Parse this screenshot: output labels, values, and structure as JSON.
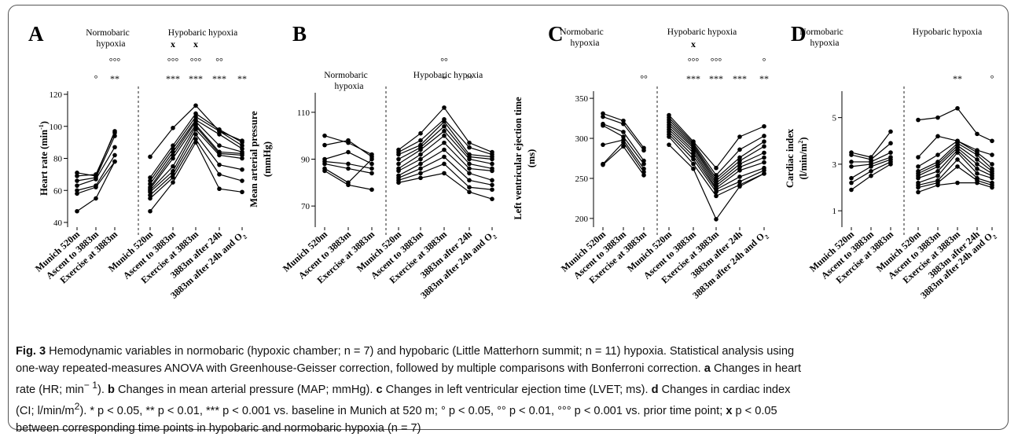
{
  "chart_data": [
    {
      "type": "line",
      "panel_letter": "A",
      "ylabel": "Heart rate (min",
      "ylabel_sup": "-1",
      "ylabel_end": ")",
      "ylim": [
        40,
        120
      ],
      "yticks": [
        40,
        60,
        80,
        100,
        120
      ],
      "groups": [
        {
          "label_lines": [
            "Normobaric",
            "hypoxia"
          ],
          "categories": [
            "Munich 520m",
            "Ascent to 3883m",
            "Exercise at 3883m"
          ],
          "annotations": [
            [],
            [
              "°"
            ],
            [
              "°°°",
              "**"
            ]
          ],
          "series": [
            {
              "values": [
                71,
                69,
                97
              ]
            },
            {
              "values": [
                69,
                70,
                96
              ]
            },
            {
              "values": [
                66,
                68,
                94
              ]
            },
            {
              "values": [
                63,
                67,
                87
              ]
            },
            {
              "values": [
                60,
                63,
                82
              ]
            },
            {
              "values": [
                58,
                62,
                78
              ]
            },
            {
              "values": [
                47,
                55,
                78
              ]
            }
          ]
        },
        {
          "label_lines": [
            "Hypobaric hypoxia"
          ],
          "categories": [
            "Munich 520m",
            "Ascent to 3883m",
            "Exercise at 3883m",
            "3883m after 24h",
            "3883m after 24h and O2"
          ],
          "annotations": [
            [],
            [
              "x",
              "°°°",
              "***"
            ],
            [
              "x",
              "°°°",
              "***"
            ],
            [
              "°°",
              "***"
            ],
            [
              "**"
            ]
          ],
          "series": [
            {
              "values": [
                81,
                99,
                113,
                97,
                91
              ]
            },
            {
              "values": [
                68,
                88,
                108,
                98,
                90
              ]
            },
            {
              "values": [
                66,
                86,
                106,
                97,
                88
              ]
            },
            {
              "values": [
                64,
                84,
                104,
                95,
                86
              ]
            },
            {
              "values": [
                62,
                82,
                103,
                88,
                84
              ]
            },
            {
              "values": [
                61,
                80,
                101,
                84,
                83
              ]
            },
            {
              "values": [
                60,
                75,
                100,
                83,
                82
              ]
            },
            {
              "values": [
                59,
                72,
                98,
                82,
                80
              ]
            },
            {
              "values": [
                57,
                70,
                95,
                76,
                73
              ]
            },
            {
              "values": [
                55,
                68,
                92,
                70,
                66
              ]
            },
            {
              "values": [
                47,
                65,
                90,
                61,
                59
              ]
            }
          ]
        }
      ]
    },
    {
      "type": "line",
      "panel_letter": "B",
      "ylabel": "Mean arterial pressure",
      "ylabel2": "(mmHg)",
      "ylim": [
        63,
        117
      ],
      "yticks": [
        70,
        90,
        110
      ],
      "groups": [
        {
          "label_lines": [
            "Normobaric",
            "hypoxia"
          ],
          "categories": [
            "Munich 520m",
            "Ascent to 3883m",
            "Exercise at 3883m"
          ],
          "annotations": [
            [],
            [],
            []
          ],
          "series": [
            {
              "values": [
                100,
                97,
                92
              ]
            },
            {
              "values": [
                96,
                98,
                91
              ]
            },
            {
              "values": [
                90,
                93,
                88
              ]
            },
            {
              "values": [
                89,
                88,
                86
              ]
            },
            {
              "values": [
                88,
                86,
                84
              ]
            },
            {
              "values": [
                86,
                80,
                90
              ]
            },
            {
              "values": [
                85,
                79,
                77
              ]
            }
          ]
        },
        {
          "label_lines": [
            "Hypobaric hypoxia"
          ],
          "categories": [
            "Munich 520m",
            "Ascent to 3883m",
            "Exercise at 3883m",
            "3883m after 24h",
            "3883m after 24h and O2"
          ],
          "annotations": [
            [],
            [],
            [
              "°°",
              "*"
            ],
            [
              "°°"
            ],
            []
          ],
          "series": [
            {
              "values": [
                94,
                101,
                112,
                97,
                93
              ]
            },
            {
              "values": [
                93,
                98,
                107,
                95,
                92
              ]
            },
            {
              "values": [
                92,
                96,
                106,
                92,
                91
              ]
            },
            {
              "values": [
                90,
                95,
                104,
                91,
                90
              ]
            },
            {
              "values": [
                88,
                94,
                102,
                90,
                88
              ]
            },
            {
              "values": [
                86,
                92,
                100,
                88,
                86
              ]
            },
            {
              "values": [
                85,
                90,
                97,
                86,
                85
              ]
            },
            {
              "values": [
                83,
                88,
                94,
                84,
                81
              ]
            },
            {
              "values": [
                82,
                86,
                91,
                81,
                79
              ]
            },
            {
              "values": [
                81,
                84,
                88,
                78,
                77
              ]
            },
            {
              "values": [
                80,
                82,
                84,
                76,
                73
              ]
            }
          ]
        }
      ]
    },
    {
      "type": "line",
      "panel_letter": "C",
      "ylabel": "Left ventricular ejection time",
      "ylabel2": "(ms)",
      "ylim": [
        195,
        355
      ],
      "yticks": [
        200,
        250,
        300,
        350
      ],
      "groups": [
        {
          "label_lines": [
            "Normobaric",
            "hypoxia"
          ],
          "categories": [
            "Munich 520m",
            "Ascent to 3883m",
            "Exercise at 3883m"
          ],
          "annotations": [
            [],
            [],
            [
              "°°"
            ]
          ],
          "series": [
            {
              "values": [
                331,
                322,
                288
              ]
            },
            {
              "values": [
                327,
                318,
                285
              ]
            },
            {
              "values": [
                318,
                308,
                272
              ]
            },
            {
              "values": [
                316,
                302,
                268
              ]
            },
            {
              "values": [
                292,
                298,
                262
              ]
            },
            {
              "values": [
                268,
                295,
                258
              ]
            },
            {
              "values": [
                267,
                290,
                254
              ]
            }
          ]
        },
        {
          "label_lines": [
            "Hypobaric hypoxia"
          ],
          "categories": [
            "Munich 520m",
            "Ascent to 3883m",
            "Exercise at 3883m",
            "3883m after 24h",
            "3883m after 24h and O2"
          ],
          "annotations": [
            [],
            [
              "x",
              "°°°",
              "***"
            ],
            [
              "°°°",
              "***"
            ],
            [
              "***"
            ],
            [
              "°",
              "**"
            ]
          ],
          "series": [
            {
              "values": [
                329,
                296,
                263,
                302,
                315
              ]
            },
            {
              "values": [
                326,
                294,
                254,
                286,
                303
              ]
            },
            {
              "values": [
                323,
                292,
                250,
                276,
                296
              ]
            },
            {
              "values": [
                320,
                290,
                247,
                272,
                290
              ]
            },
            {
              "values": [
                317,
                288,
                244,
                268,
                282
              ]
            },
            {
              "values": [
                314,
                285,
                241,
                264,
                276
              ]
            },
            {
              "values": [
                311,
                282,
                238,
                260,
                270
              ]
            },
            {
              "values": [
                308,
                278,
                236,
                252,
                263
              ]
            },
            {
              "values": [
                305,
                274,
                233,
                246,
                260
              ]
            },
            {
              "values": [
                302,
                268,
                228,
                242,
                256
              ]
            },
            {
              "values": [
                292,
                262,
                199,
                240,
                256
              ]
            }
          ]
        }
      ]
    },
    {
      "type": "line",
      "panel_letter": "D",
      "ylabel": "Cardiac index",
      "ylabel2": "(l/min/m",
      "ylabel2_sup": "2",
      "ylabel2_end": ")",
      "ylim": [
        0.5,
        6.0
      ],
      "yticks": [
        1,
        3,
        5
      ],
      "groups": [
        {
          "label_lines": [
            "Normobaric",
            "hypoxia"
          ],
          "categories": [
            "Munich 520m",
            "Ascent to 3883m",
            "Exercise at 3883m"
          ],
          "annotations": [
            [],
            [],
            []
          ],
          "series": [
            {
              "values": [
                3.5,
                3.3,
                4.4
              ]
            },
            {
              "values": [
                3.4,
                3.2,
                3.9
              ]
            },
            {
              "values": [
                3.1,
                3.1,
                3.5
              ]
            },
            {
              "values": [
                2.9,
                3.0,
                3.3
              ]
            },
            {
              "values": [
                2.4,
                2.9,
                3.2
              ]
            },
            {
              "values": [
                2.2,
                2.7,
                3.1
              ]
            },
            {
              "values": [
                1.9,
                2.5,
                3.0
              ]
            }
          ]
        },
        {
          "label_lines": [
            "Hypobaric hypoxia"
          ],
          "categories": [
            "Munich 520m",
            "Ascent to 3883m",
            "Exercise at 3883m",
            "3883m after 24h",
            "3883m after 24h and O2"
          ],
          "annotations": [
            [],
            [],
            [
              "**"
            ],
            [],
            [
              "°"
            ]
          ],
          "series": [
            {
              "values": [
                4.9,
                5.0,
                5.4,
                4.3,
                4.0
              ]
            },
            {
              "values": [
                3.3,
                4.2,
                4.0,
                3.6,
                3.4
              ]
            },
            {
              "values": [
                2.9,
                3.4,
                4.0,
                3.5,
                3.0
              ]
            },
            {
              "values": [
                2.7,
                3.1,
                3.9,
                3.4,
                2.8
              ]
            },
            {
              "values": [
                2.6,
                3.0,
                3.8,
                3.2,
                2.7
              ]
            },
            {
              "values": [
                2.5,
                2.9,
                3.7,
                3.0,
                2.6
              ]
            },
            {
              "values": [
                2.4,
                2.7,
                3.6,
                2.8,
                2.5
              ]
            },
            {
              "values": [
                2.2,
                2.5,
                3.5,
                2.6,
                2.4
              ]
            },
            {
              "values": [
                2.1,
                2.3,
                3.2,
                2.4,
                2.2
              ]
            },
            {
              "values": [
                2.0,
                2.2,
                2.9,
                2.3,
                2.1
              ]
            },
            {
              "values": [
                1.8,
                2.1,
                2.2,
                2.2,
                2.0
              ]
            }
          ]
        }
      ]
    }
  ],
  "caption": {
    "line1_label": "Fig. 3",
    "line1": " Hemodynamic variables in normobaric (hypoxic chamber; n = 7) and hypobaric (Little Matterhorn summit; n = 11) hypoxia. Statistical analysis using",
    "line2": "one-way repeated-measures ANOVA with Greenhouse-Geisser correction, followed by multiple comparisons with Bonferroni correction.",
    "a_label": "a",
    "a_text": " Changes in heart",
    "line3_pre": "rate (HR; min",
    "line3_sup": "− 1",
    "line3_mid": ").",
    "b_label": "b",
    "b_text": " Changes in mean arterial pressure (MAP; mmHg).",
    "c_label": "c",
    "c_text": " Changes in left ventricular ejection time (LVET; ms).",
    "d_label": "d",
    "d_text": " Changes in cardiac index",
    "line4_pre": "(CI; l/min/m",
    "line4_sup": "2",
    "line4_text": "). * p < 0.05, ** p < 0.01, *** p < 0.001 vs. baseline in Munich at 520 m; ° p < 0.05, °° p < 0.01, °°° p < 0.001 vs. prior time point;",
    "x_label": "x",
    "x_text": " p < 0.05",
    "line5": "between corresponding time points in hypobaric and normobaric hypoxia (n = 7)"
  }
}
